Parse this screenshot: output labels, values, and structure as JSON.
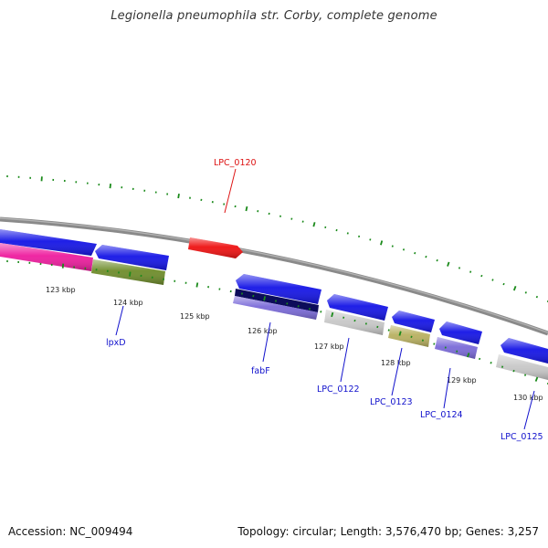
{
  "title": "Legionella pneumophila str. Corby, complete genome",
  "footer": {
    "accession": "Accession: NC_009494",
    "summary": "Topology: circular; Length: 3,576,470 bp; Genes: 3,257"
  },
  "colors": {
    "backbone": "#8a8a8a",
    "ticks": "#1a8a1a",
    "blue_gene": "#1414e6",
    "red_gene": "#ee1111",
    "magenta_gene": "#ee1c9e",
    "olive_gene": "#6e8c2a",
    "navy_gene": "#0c0c5a",
    "lavender_gene": "#7a6ad8",
    "gray_gene": "#c8c8c8",
    "khaki_gene": "#b8b060",
    "label_red": "#dd1111",
    "label_blue": "#1111cc"
  },
  "kbp_labels": [
    "123 kbp",
    "124 kbp",
    "125 kbp",
    "126 kbp",
    "127 kbp",
    "128 kbp",
    "129 kbp",
    "130 kbp"
  ],
  "gene_labels": [
    {
      "text": "LPC_0120",
      "color": "red"
    },
    {
      "text": "lpxD",
      "color": "blue"
    },
    {
      "text": "fabF",
      "color": "blue"
    },
    {
      "text": "LPC_0122",
      "color": "blue"
    },
    {
      "text": "LPC_0123",
      "color": "blue"
    },
    {
      "text": "LPC_0124",
      "color": "blue"
    },
    {
      "text": "LPC_0125",
      "color": "blue"
    }
  ]
}
